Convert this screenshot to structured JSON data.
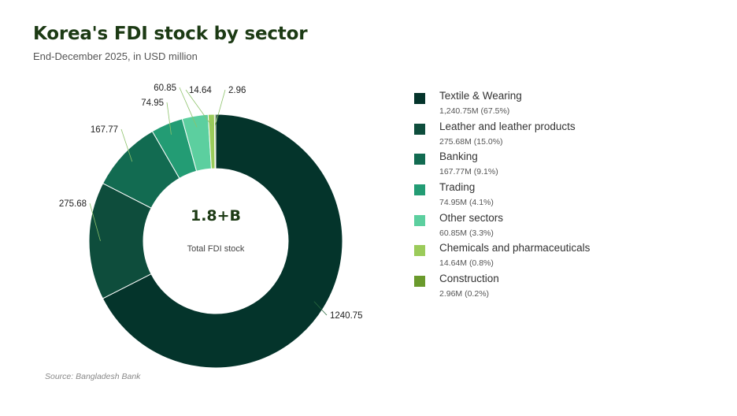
{
  "header": {
    "title": "Korea's FDI stock by sector",
    "subtitle": "End-December 2025, in USD million"
  },
  "chart_data": {
    "type": "pie",
    "variant": "donut",
    "title": "Korea's FDI stock by sector",
    "subtitle": "End-December 2025, in USD million",
    "center_value": "1.8+B",
    "center_label": "Total FDI stock",
    "legend_position": "right",
    "series": [
      {
        "name": "Textile & Wearing",
        "value": 1240.75,
        "label": "1240.75",
        "detail": "1,240.75M  (67.5%)",
        "color": "#04342b"
      },
      {
        "name": "Leather and leather products",
        "value": 275.68,
        "label": "275.68",
        "detail": "275.68M  (15.0%)",
        "color": "#0e4d3c"
      },
      {
        "name": "Banking",
        "value": 167.77,
        "label": "167.77",
        "detail": "167.77M  (9.1%)",
        "color": "#126b51"
      },
      {
        "name": "Trading",
        "value": 74.95,
        "label": "74.95",
        "detail": "74.95M  (4.1%)",
        "color": "#239c74"
      },
      {
        "name": "Other sectors",
        "value": 60.85,
        "label": "60.85",
        "detail": "60.85M  (3.3%)",
        "color": "#5ccf9f"
      },
      {
        "name": "Chemicals and pharmaceuticals",
        "value": 14.64,
        "label": "14.64",
        "detail": "14.64M  (0.8%)",
        "color": "#9bcb5a"
      },
      {
        "name": "Construction",
        "value": 2.96,
        "label": "2.96",
        "detail": "2.96M  (0.2%)",
        "color": "#6a9a2c"
      }
    ]
  },
  "footer": {
    "source": "Source: Bangladesh Bank"
  }
}
